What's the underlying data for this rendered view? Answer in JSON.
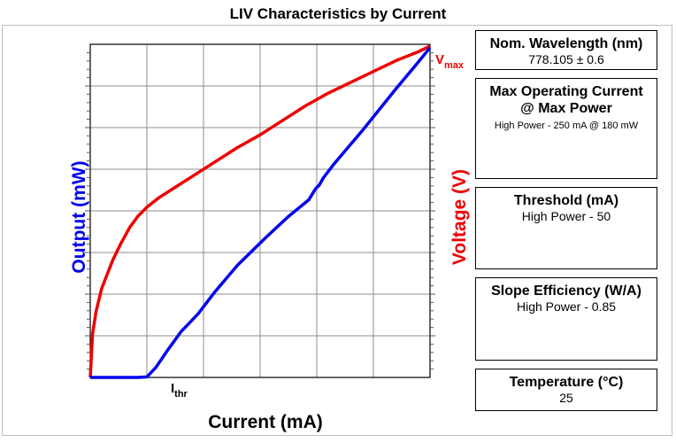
{
  "chart_data": {
    "type": "line",
    "title": "LIV Characteristics by Current",
    "xlabel": "Current (mA)",
    "ylabel_left": "Output (mW)",
    "ylabel_right": "Voltage (V)",
    "x_range": [
      0,
      300
    ],
    "grid": true,
    "annotations": {
      "threshold": {
        "main": "I",
        "sub": "thr"
      },
      "vmax": {
        "main": "V",
        "sub": "max"
      }
    },
    "series": [
      {
        "color": "#0000ee",
        "axis": "left",
        "x": [
          0,
          42,
          50,
          58,
          68,
          80,
          95,
          110,
          130,
          155,
          175,
          193,
          199,
          202,
          206,
          215,
          240,
          270,
          288,
          300
        ],
        "y": [
          0,
          0,
          0.5,
          9,
          24,
          41,
          57,
          77,
          101,
          126,
          145,
          160,
          170,
          173,
          180,
          192,
          222,
          260,
          282,
          297
        ]
      },
      {
        "color": "#ee0000",
        "axis": "right",
        "x": [
          0,
          2,
          5,
          10,
          15,
          20,
          27,
          35,
          42,
          50,
          60,
          75,
          90,
          110,
          130,
          150,
          170,
          190,
          210,
          230,
          250,
          270,
          290,
          300
        ],
        "y": [
          0.8,
          1.04,
          1.16,
          1.29,
          1.37,
          1.45,
          1.54,
          1.63,
          1.69,
          1.74,
          1.79,
          1.85,
          1.91,
          1.99,
          2.07,
          2.14,
          2.22,
          2.3,
          2.37,
          2.43,
          2.49,
          2.55,
          2.6,
          2.63
        ]
      }
    ]
  },
  "boxes": [
    {
      "title": "Nom. Wavelength (nm)",
      "value": "778.105 ± 0.6"
    },
    {
      "title": "Max Operating Current",
      "title2": "@ Max Power",
      "value": "High Power - 250 mA @ 180 mW"
    },
    {
      "title": "Threshold (mA)",
      "value": "High Power - 50"
    },
    {
      "title": "Slope Efficiency (W/A)",
      "value": "High Power - 0.85"
    },
    {
      "title": "Temperature (°C)",
      "value": "25"
    }
  ],
  "colors": {
    "output": "#0000ee",
    "voltage": "#ee0000",
    "grid": "#8c8c8c",
    "frame": "#bdbdbd"
  }
}
